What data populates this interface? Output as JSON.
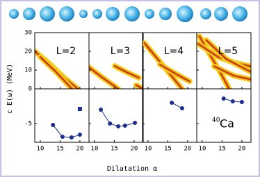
{
  "figure": {
    "ylabel": "c E(ω)  (MeV)",
    "xlabel": "Dilatation α"
  },
  "chart_data": [
    {
      "type": "ridge",
      "label": "L=2",
      "color": "#f2d21c",
      "core_color": "#c0200a",
      "xlim": [
        8.6,
        22.3
      ],
      "ylim": [
        0,
        30
      ],
      "xticks": [
        10,
        15,
        20
      ],
      "yticks": [
        0,
        10,
        20,
        30
      ],
      "ridges": [
        {
          "x": [
            8.6,
            12,
            16,
            19.5
          ],
          "y": [
            20,
            14,
            6,
            0
          ]
        },
        {
          "x": [
            10,
            14,
            18
          ],
          "y": [
            17,
            9,
            0
          ]
        }
      ]
    },
    {
      "type": "ridge",
      "label": "L=3",
      "color": "#f2d21c",
      "core_color": "#c0200a",
      "xlim": [
        8.6,
        22.3
      ],
      "ylim": [
        0,
        30
      ],
      "xticks": [
        10,
        15,
        20
      ],
      "yticks": [
        0,
        10,
        20,
        30
      ],
      "ridges": [
        {
          "x": [
            8.6,
            12,
            16
          ],
          "y": [
            11.5,
            6,
            0
          ]
        },
        {
          "x": [
            15.1,
            18,
            21.2
          ],
          "y": [
            12.2,
            9,
            5.9
          ]
        },
        {
          "x": [
            20.5,
            22.3
          ],
          "y": [
            2,
            0
          ]
        }
      ]
    },
    {
      "type": "ridge",
      "label": "L=4",
      "color": "#f2d21c",
      "core_color": "#c0200a",
      "xlim": [
        8.6,
        22.3
      ],
      "ylim": [
        0,
        30
      ],
      "xticks": [
        10,
        15,
        20
      ],
      "yticks": [
        0,
        10,
        20,
        30
      ],
      "ridges": [
        {
          "x": [
            9.1,
            12,
            15.5,
            18.6
          ],
          "y": [
            24.4,
            17,
            8,
            0
          ]
        },
        {
          "x": [
            13,
            17,
            20.5
          ],
          "y": [
            13,
            8,
            4
          ]
        }
      ]
    },
    {
      "type": "ridge",
      "label": "L=5",
      "color": "#f2d21c",
      "core_color": "#c0200a",
      "xlim": [
        8.6,
        22.3
      ],
      "ylim": [
        0,
        30
      ],
      "xticks": [
        10,
        15,
        20
      ],
      "yticks": [
        0,
        10,
        20,
        30
      ],
      "ridges": [
        {
          "x": [
            9.3,
            12,
            14.5,
            16.8
          ],
          "y": [
            28,
            18,
            9,
            0
          ]
        },
        {
          "x": [
            9,
            14,
            18,
            22.3
          ],
          "y": [
            24,
            17,
            14,
            12
          ]
        },
        {
          "x": [
            11,
            16,
            22.3
          ],
          "y": [
            26,
            16,
            9
          ]
        },
        {
          "x": [
            13,
            18,
            22.3
          ],
          "y": [
            12,
            7,
            5
          ]
        }
      ]
    },
    {
      "type": "line",
      "color": "#1a2e8f",
      "xlim": [
        8.6,
        22.3
      ],
      "ylim": [
        -7.7,
        0
      ],
      "xticks": [
        10,
        15,
        20
      ],
      "yticks": [
        -5
      ],
      "x": [
        13.2,
        15.6,
        17.9,
        20
      ],
      "values": [
        -5.2,
        -6.9,
        -7.0,
        -6.6
      ],
      "square": {
        "x": 20,
        "value": -2.9
      }
    },
    {
      "type": "line",
      "color": "#1a2e8f",
      "xlim": [
        8.6,
        22.3
      ],
      "ylim": [
        -7.7,
        0
      ],
      "xticks": [
        10,
        15,
        20
      ],
      "yticks": [
        -5
      ],
      "x": [
        11.6,
        13.9,
        16,
        17.7,
        20.2
      ],
      "values": [
        -3.0,
        -5.0,
        -5.4,
        -5.3,
        -4.9
      ]
    },
    {
      "type": "line",
      "color": "#1a2e8f",
      "xlim": [
        8.6,
        22.3
      ],
      "ylim": [
        -7.7,
        0
      ],
      "xticks": [
        10,
        15,
        20
      ],
      "yticks": [
        -5
      ],
      "x": [
        16,
        18.6
      ],
      "values": [
        -2.0,
        -2.8
      ]
    },
    {
      "type": "line",
      "color": "#1a2e8f",
      "xlim": [
        8.6,
        22.3
      ],
      "ylim": [
        -7.7,
        0
      ],
      "xticks": [
        10,
        15,
        20
      ],
      "yticks": [
        -5
      ],
      "x": [
        15.4,
        17.7,
        20
      ],
      "values": [
        -1.4,
        -1.8,
        -1.9
      ],
      "annotation": {
        "mass": "40",
        "symbol": "Ca"
      }
    }
  ]
}
